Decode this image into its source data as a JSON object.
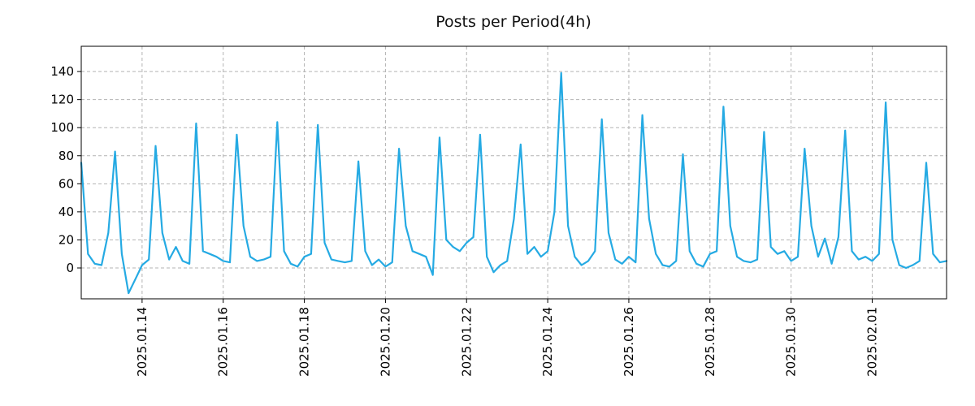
{
  "page": {
    "background": "#ffffff"
  },
  "chart_data": {
    "type": "line",
    "title": "Posts per Period(4h)",
    "series_name": "posts",
    "start": "2025-01-12T12:00",
    "step_hours": 4,
    "values": [
      75,
      10,
      3,
      2,
      25,
      83,
      10,
      -18,
      -8,
      2,
      6,
      87,
      25,
      6,
      15,
      5,
      3,
      103,
      12,
      10,
      8,
      5,
      4,
      95,
      30,
      8,
      5,
      6,
      8,
      104,
      12,
      3,
      1,
      8,
      10,
      102,
      18,
      6,
      5,
      4,
      5,
      76,
      12,
      2,
      6,
      1,
      4,
      85,
      30,
      12,
      10,
      8,
      -5,
      93,
      20,
      15,
      12,
      18,
      22,
      95,
      8,
      -3,
      2,
      5,
      35,
      88,
      10,
      15,
      8,
      12,
      40,
      139,
      30,
      8,
      2,
      5,
      12,
      106,
      25,
      6,
      3,
      8,
      4,
      109,
      35,
      10,
      2,
      1,
      5,
      81,
      12,
      3,
      1,
      10,
      12,
      115,
      30,
      8,
      5,
      4,
      6,
      97,
      15,
      10,
      12,
      5,
      8,
      85,
      30,
      8,
      21,
      3,
      22,
      98,
      12,
      6,
      8,
      5,
      10,
      118,
      20,
      2,
      0,
      2,
      5,
      75,
      10,
      4,
      5
    ],
    "yticks": [
      0,
      20,
      40,
      60,
      80,
      100,
      120,
      140
    ],
    "ylim": [
      -22,
      158
    ],
    "xtick_labels": [
      "2025.01.14",
      "2025.01.16",
      "2025.01.18",
      "2025.01.20",
      "2025.01.22",
      "2025.01.24",
      "2025.01.26",
      "2025.01.28",
      "2025.01.30",
      "2025.02.01"
    ],
    "line_color": "#25aae3",
    "grid": true,
    "grid_style": "dashed",
    "legend": "none"
  }
}
